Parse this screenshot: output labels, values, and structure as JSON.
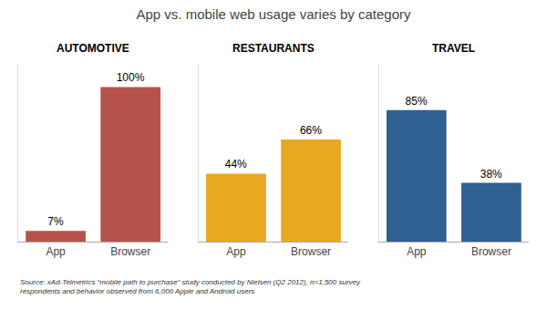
{
  "title": "App vs. mobile web usage varies by category",
  "annotations": [
    "Source: xAd-Telmetrics “mobile path to purchase” study conducted by Nielsen (Q2 2012), n=1,500 survey\nrespondents and behavior observed from 6,000 Apple and Android users"
  ],
  "chart_data": [
    {
      "type": "bar",
      "title": "AUTOMOTIVE",
      "categories": [
        "App",
        "Browser"
      ],
      "values": [
        7,
        100
      ],
      "value_labels": [
        "7%",
        "100%"
      ],
      "color": "#b5534a",
      "ylim": [
        0,
        115
      ],
      "grid": false,
      "data_labels": true,
      "tick_labels": "x"
    },
    {
      "type": "bar",
      "title": "RESTAURANTS",
      "categories": [
        "App",
        "Browser"
      ],
      "values": [
        44,
        66
      ],
      "value_labels": [
        "44%",
        "66%"
      ],
      "color": "#e8a820",
      "ylim": [
        0,
        115
      ],
      "grid": false,
      "data_labels": true,
      "tick_labels": "x"
    },
    {
      "type": "bar",
      "title": "TRAVEL",
      "categories": [
        "App",
        "Browser"
      ],
      "values": [
        85,
        38
      ],
      "value_labels": [
        "85%",
        "38%"
      ],
      "color": "#2e6091",
      "ylim": [
        0,
        115
      ],
      "grid": false,
      "data_labels": true,
      "tick_labels": "x"
    }
  ]
}
